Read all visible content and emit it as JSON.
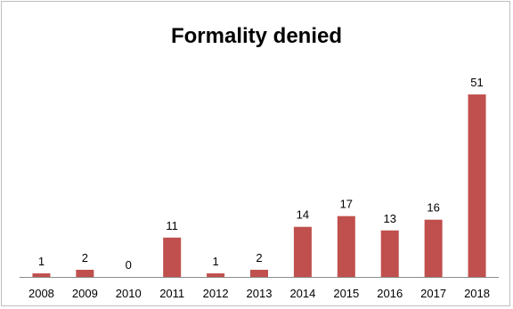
{
  "chart_data": {
    "type": "bar",
    "title": "Formality denied",
    "xlabel": "",
    "ylabel": "",
    "categories": [
      "2008",
      "2009",
      "2010",
      "2011",
      "2012",
      "2013",
      "2014",
      "2015",
      "2016",
      "2017",
      "2018"
    ],
    "values": [
      1,
      2,
      0,
      11,
      1,
      2,
      14,
      17,
      13,
      16,
      51
    ],
    "data_labels": [
      "1",
      "2",
      "0",
      "11",
      "1",
      "2",
      "14",
      "17",
      "13",
      "16",
      "51"
    ],
    "ylim": [
      0,
      55
    ],
    "bar_color": "#c0504d",
    "grid": false,
    "legend": "none"
  }
}
